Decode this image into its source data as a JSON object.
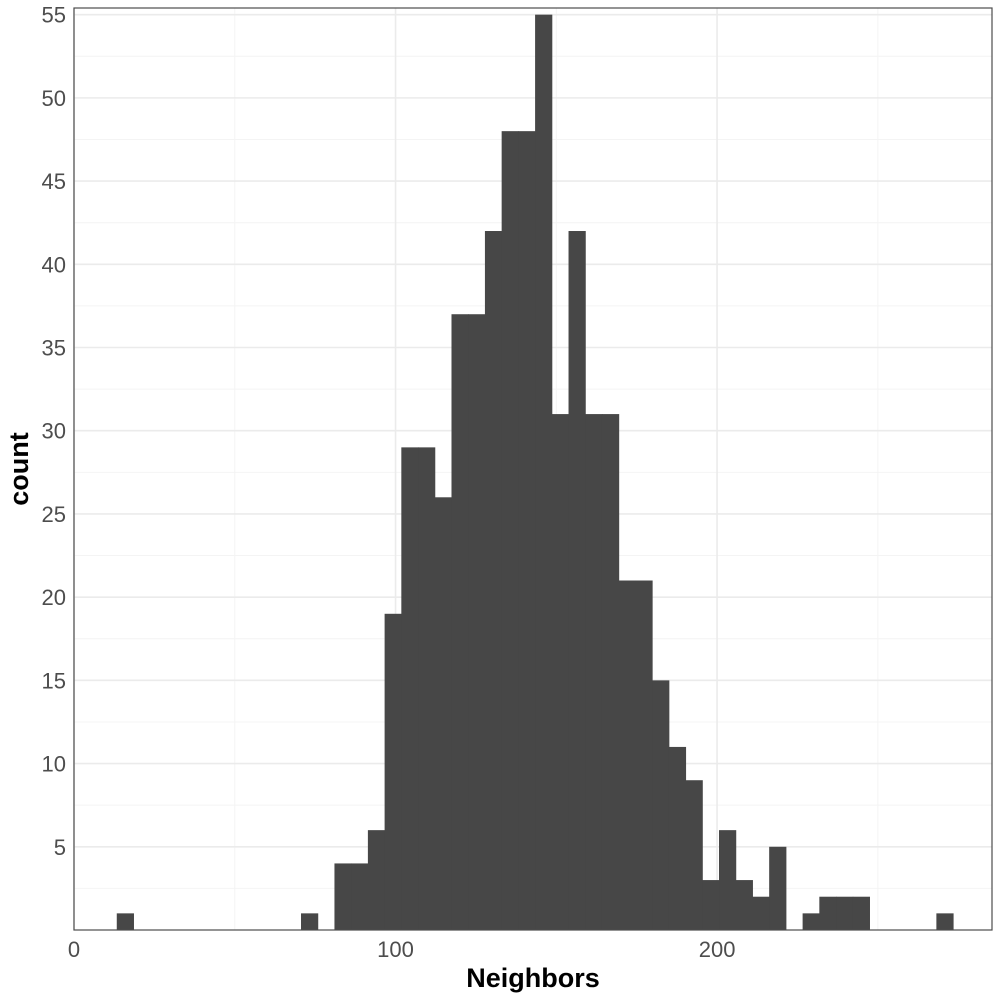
{
  "chart_data": {
    "type": "bar",
    "xlabel": "Neighbors",
    "ylabel": "count",
    "xlim": [
      0,
      285.5
    ],
    "ylim": [
      0,
      55.4
    ],
    "x_ticks": [
      0,
      100,
      200
    ],
    "x_minor_ticks": [
      50,
      150,
      250
    ],
    "y_ticks": [
      5,
      10,
      15,
      20,
      25,
      30,
      35,
      40,
      45,
      50,
      55
    ],
    "y_minor_ticks": [
      2.5,
      7.5,
      12.5,
      17.5,
      22.5,
      27.5,
      32.5,
      37.5,
      42.5,
      47.5,
      52.5
    ],
    "grid": true,
    "bin_width": 5.2,
    "bins": [
      {
        "start": 13.3,
        "count": 1
      },
      {
        "start": 70.6,
        "count": 1
      },
      {
        "start": 81.0,
        "count": 4
      },
      {
        "start": 86.2,
        "count": 4
      },
      {
        "start": 91.4,
        "count": 6
      },
      {
        "start": 96.6,
        "count": 19
      },
      {
        "start": 101.8,
        "count": 29
      },
      {
        "start": 107.0,
        "count": 29
      },
      {
        "start": 112.2,
        "count": 26
      },
      {
        "start": 117.4,
        "count": 37
      },
      {
        "start": 122.6,
        "count": 37
      },
      {
        "start": 127.8,
        "count": 42
      },
      {
        "start": 133.0,
        "count": 48
      },
      {
        "start": 138.2,
        "count": 48
      },
      {
        "start": 143.4,
        "count": 55
      },
      {
        "start": 148.6,
        "count": 31
      },
      {
        "start": 153.8,
        "count": 42
      },
      {
        "start": 159.0,
        "count": 31
      },
      {
        "start": 164.2,
        "count": 31
      },
      {
        "start": 169.4,
        "count": 21
      },
      {
        "start": 174.6,
        "count": 21
      },
      {
        "start": 179.8,
        "count": 15
      },
      {
        "start": 185.0,
        "count": 11
      },
      {
        "start": 190.2,
        "count": 9
      },
      {
        "start": 195.4,
        "count": 3
      },
      {
        "start": 200.6,
        "count": 6
      },
      {
        "start": 205.8,
        "count": 3
      },
      {
        "start": 211.0,
        "count": 2
      },
      {
        "start": 216.2,
        "count": 5
      },
      {
        "start": 226.6,
        "count": 1
      },
      {
        "start": 231.8,
        "count": 2
      },
      {
        "start": 237.0,
        "count": 2
      },
      {
        "start": 242.2,
        "count": 2
      },
      {
        "start": 268.2,
        "count": 1
      }
    ],
    "bar_color": "#474747",
    "grid_major_color": "#ebebeb",
    "grid_minor_color": "#f4f4f4",
    "panel_border_color": "#4d4d4d"
  }
}
